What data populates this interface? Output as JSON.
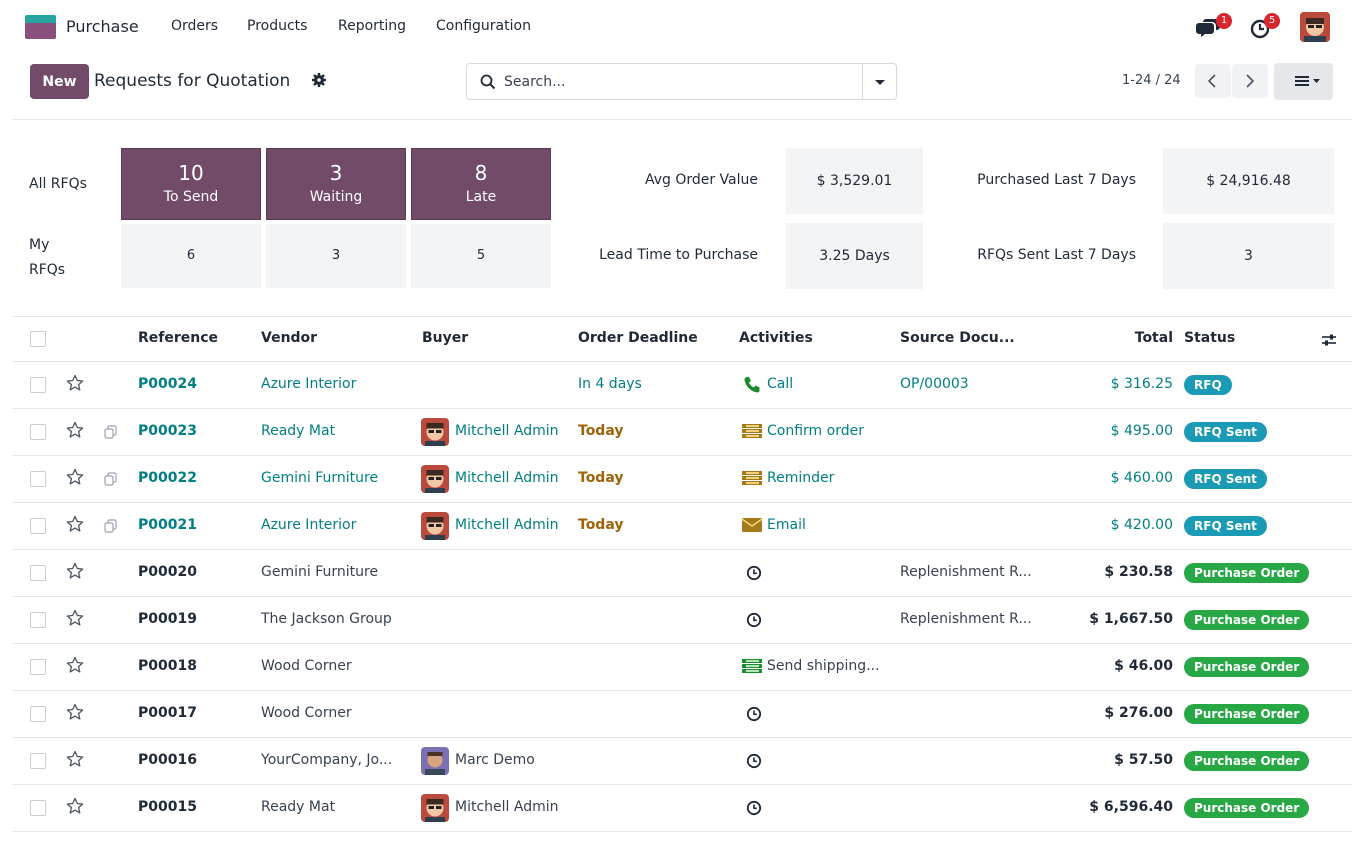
{
  "app": {
    "name": "Purchase"
  },
  "nav": {
    "menus": [
      "Orders",
      "Products",
      "Reporting",
      "Configuration"
    ]
  },
  "systray": {
    "messages_count": "1",
    "activities_count": "5"
  },
  "control": {
    "new_label": "New",
    "title": "Requests for Quotation",
    "search_placeholder": "Search...",
    "pager": "1-24 / 24"
  },
  "dashboard": {
    "row_all": "All RFQs",
    "row_my": "My RFQs",
    "tiles_all": [
      {
        "value": "10",
        "label": "To Send"
      },
      {
        "value": "3",
        "label": "Waiting"
      },
      {
        "value": "8",
        "label": "Late"
      }
    ],
    "tiles_my": [
      "6",
      "3",
      "5"
    ],
    "kpis": [
      {
        "label": "Avg Order Value",
        "value": "$ 3,529.01"
      },
      {
        "label": "Purchased Last 7 Days",
        "value": "$ 24,916.48"
      },
      {
        "label": "Lead Time to Purchase",
        "value": "3.25 Days"
      },
      {
        "label": "RFQs Sent Last 7 Days",
        "value": "3"
      }
    ]
  },
  "table": {
    "columns": [
      "Reference",
      "Vendor",
      "Buyer",
      "Order Deadline",
      "Activities",
      "Source Docu...",
      "Total",
      "Status"
    ],
    "rows": [
      {
        "ref": "P00024",
        "vendor": "Azure Interior",
        "buyer": "",
        "deadline": "In 4 days",
        "activity": "Call",
        "activity_icon": "phone-icon",
        "source": "OP/00003",
        "total": "$ 316.25",
        "status": "RFQ"
      },
      {
        "ref": "P00023",
        "vendor": "Ready Mat",
        "buyer": "Mitchell Admin",
        "deadline": "Today",
        "activity": "Confirm order",
        "activity_icon": "todo-icon",
        "source": "",
        "total": "$ 495.00",
        "status": "RFQ Sent"
      },
      {
        "ref": "P00022",
        "vendor": "Gemini Furniture",
        "buyer": "Mitchell Admin",
        "deadline": "Today",
        "activity": "Reminder",
        "activity_icon": "todo-icon",
        "source": "",
        "total": "$ 460.00",
        "status": "RFQ Sent"
      },
      {
        "ref": "P00021",
        "vendor": "Azure Interior",
        "buyer": "Mitchell Admin",
        "deadline": "Today",
        "activity": "Email",
        "activity_icon": "envelope-icon",
        "source": "",
        "total": "$ 420.00",
        "status": "RFQ Sent"
      },
      {
        "ref": "P00020",
        "vendor": "Gemini Furniture",
        "buyer": "",
        "deadline": "",
        "activity": "",
        "activity_icon": "clock-icon",
        "source": "Replenishment R...",
        "total": "$ 230.58",
        "status": "Purchase Order"
      },
      {
        "ref": "P00019",
        "vendor": "The Jackson Group",
        "buyer": "",
        "deadline": "",
        "activity": "",
        "activity_icon": "clock-icon",
        "source": "Replenishment R...",
        "total": "$ 1,667.50",
        "status": "Purchase Order"
      },
      {
        "ref": "P00018",
        "vendor": "Wood Corner",
        "buyer": "",
        "deadline": "",
        "activity": "Send shipping...",
        "activity_icon": "todo-icon",
        "source": "",
        "total": "$ 46.00",
        "status": "Purchase Order"
      },
      {
        "ref": "P00017",
        "vendor": "Wood Corner",
        "buyer": "",
        "deadline": "",
        "activity": "",
        "activity_icon": "clock-icon",
        "source": "",
        "total": "$ 276.00",
        "status": "Purchase Order"
      },
      {
        "ref": "P00016",
        "vendor": "YourCompany, Jo...",
        "buyer": "Marc Demo",
        "deadline": "",
        "activity": "",
        "activity_icon": "clock-icon",
        "source": "",
        "total": "$ 57.50",
        "status": "Purchase Order"
      },
      {
        "ref": "P00015",
        "vendor": "Ready Mat",
        "buyer": "Mitchell Admin",
        "deadline": "",
        "activity": "",
        "activity_icon": "clock-icon",
        "source": "",
        "total": "$ 6,596.40",
        "status": "Purchase Order"
      }
    ]
  },
  "colors": {
    "brand": "#714b67",
    "link": "#017e84",
    "rfq_badge": "#1a9ab4",
    "po_badge": "#28a745",
    "today": "#a16207"
  }
}
